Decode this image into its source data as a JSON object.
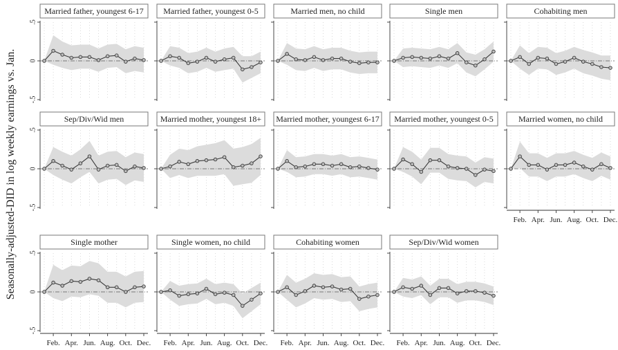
{
  "figure": {
    "ylabel": "Seasonally-adjusted-DID in log weekly earnings vs. Jan.",
    "x_tick_labels": [
      "Feb.",
      "Apr.",
      "Jun.",
      "Aug.",
      "Oct.",
      "Dec."
    ],
    "y_tick_labels": [
      "-.5",
      "0",
      ".5"
    ]
  },
  "colors": {
    "ci_band": "#dcdcdc",
    "line": "#3a3a3a",
    "marker_fill": "#bdbdbd",
    "zero_line": "#555555",
    "grid": "#cfcfcf",
    "header_border": "#777777"
  },
  "chart_data": {
    "type": "line",
    "layout": "small-multiples 3x5",
    "x": [
      1,
      2,
      3,
      4,
      5,
      6,
      7,
      8,
      9,
      10,
      11,
      12
    ],
    "x_tick_values": [
      2,
      4,
      6,
      8,
      10,
      12
    ],
    "ylim": [
      -0.5,
      0.5
    ],
    "y_tick_values": [
      -0.5,
      0,
      0.5
    ],
    "grid": true,
    "panels": [
      {
        "title": "Married father, youngest 6-17",
        "y": [
          0,
          0.13,
          0.08,
          0.04,
          0.05,
          0.05,
          0.01,
          0.06,
          0.07,
          -0.01,
          0.03,
          0.01
        ],
        "lo": [
          0,
          -0.05,
          -0.09,
          -0.12,
          -0.1,
          -0.1,
          -0.14,
          -0.09,
          -0.08,
          -0.16,
          -0.13,
          -0.15
        ],
        "hi": [
          0,
          0.33,
          0.25,
          0.2,
          0.21,
          0.21,
          0.16,
          0.21,
          0.22,
          0.15,
          0.19,
          0.17
        ]
      },
      {
        "title": "Married father, youngest 0-5",
        "y": [
          0,
          0.06,
          0.04,
          -0.03,
          -0.01,
          0.04,
          -0.01,
          0.02,
          0.04,
          -0.11,
          -0.08,
          -0.02
        ],
        "lo": [
          0,
          -0.06,
          -0.09,
          -0.16,
          -0.14,
          -0.09,
          -0.14,
          -0.12,
          -0.1,
          -0.28,
          -0.22,
          -0.16
        ],
        "hi": [
          0,
          0.19,
          0.17,
          0.1,
          0.12,
          0.17,
          0.12,
          0.16,
          0.18,
          0.06,
          0.06,
          0.12
        ]
      },
      {
        "title": "Married men, no child",
        "y": [
          0,
          0.09,
          0.02,
          0.01,
          0.05,
          0.01,
          0.03,
          0.03,
          -0.01,
          -0.03,
          -0.02,
          -0.02
        ],
        "lo": [
          0,
          -0.05,
          -0.12,
          -0.13,
          -0.09,
          -0.13,
          -0.11,
          -0.11,
          -0.15,
          -0.17,
          -0.16,
          -0.16
        ],
        "hi": [
          0,
          0.23,
          0.16,
          0.15,
          0.19,
          0.15,
          0.17,
          0.17,
          0.13,
          0.11,
          0.12,
          0.12
        ]
      },
      {
        "title": "Single men",
        "y": [
          0,
          0.04,
          0.05,
          0.04,
          0.03,
          0.06,
          0.03,
          0.1,
          -0.02,
          -0.06,
          0.02,
          0.12
        ],
        "lo": [
          0,
          -0.08,
          -0.07,
          -0.08,
          -0.09,
          -0.06,
          -0.09,
          -0.03,
          -0.15,
          -0.2,
          -0.11,
          -0.01
        ],
        "hi": [
          0,
          0.16,
          0.17,
          0.16,
          0.15,
          0.18,
          0.15,
          0.23,
          0.11,
          0.08,
          0.15,
          0.25
        ]
      },
      {
        "title": "Cohabiting men",
        "y": [
          0,
          0.05,
          -0.04,
          0.04,
          0.03,
          -0.04,
          -0.01,
          0.04,
          -0.01,
          -0.04,
          -0.08,
          -0.09
        ],
        "lo": [
          0,
          -0.1,
          -0.18,
          -0.1,
          -0.11,
          -0.18,
          -0.15,
          -0.1,
          -0.16,
          -0.19,
          -0.23,
          -0.25
        ],
        "hi": [
          0,
          0.2,
          0.1,
          0.18,
          0.17,
          0.1,
          0.13,
          0.18,
          0.14,
          0.11,
          0.07,
          0.07
        ]
      },
      {
        "title": "Sep/Div/Wid men",
        "y": [
          0,
          0.1,
          0.04,
          -0.01,
          0.07,
          0.16,
          -0.01,
          0.04,
          0.05,
          -0.03,
          0.03,
          0.01
        ],
        "lo": [
          0,
          -0.08,
          -0.14,
          -0.19,
          -0.11,
          -0.04,
          -0.19,
          -0.14,
          -0.13,
          -0.21,
          -0.15,
          -0.17
        ],
        "hi": [
          0,
          0.28,
          0.22,
          0.17,
          0.25,
          0.36,
          0.17,
          0.22,
          0.23,
          0.15,
          0.21,
          0.19
        ]
      },
      {
        "title": "Married mother, youngest 18+",
        "y": [
          0,
          0.03,
          0.09,
          0.06,
          0.1,
          0.11,
          0.12,
          0.15,
          0.02,
          0.04,
          0.07,
          0.16
        ],
        "lo": [
          0,
          -0.12,
          -0.08,
          -0.12,
          -0.09,
          -0.09,
          -0.09,
          -0.07,
          -0.22,
          -0.2,
          -0.18,
          -0.08
        ],
        "hi": [
          0,
          0.18,
          0.26,
          0.24,
          0.29,
          0.31,
          0.33,
          0.37,
          0.26,
          0.28,
          0.32,
          0.4
        ]
      },
      {
        "title": "Married mother, youngest 6-17",
        "y": [
          0,
          0.1,
          0.02,
          0.03,
          0.06,
          0.06,
          0.04,
          0.06,
          0.02,
          0.03,
          0.01,
          -0.01
        ],
        "lo": [
          0,
          -0.04,
          -0.11,
          -0.1,
          -0.07,
          -0.07,
          -0.09,
          -0.07,
          -0.11,
          -0.1,
          -0.12,
          -0.14
        ],
        "hi": [
          0,
          0.24,
          0.15,
          0.16,
          0.19,
          0.19,
          0.17,
          0.19,
          0.15,
          0.16,
          0.14,
          0.12
        ]
      },
      {
        "title": "Married mother, youngest 0-5",
        "y": [
          0,
          0.12,
          0.06,
          -0.04,
          0.11,
          0.11,
          0.03,
          0.01,
          0.0,
          -0.08,
          -0.01,
          -0.03
        ],
        "lo": [
          0,
          -0.04,
          -0.1,
          -0.2,
          -0.05,
          -0.05,
          -0.13,
          -0.15,
          -0.16,
          -0.24,
          -0.17,
          -0.19
        ],
        "hi": [
          0,
          0.28,
          0.22,
          0.12,
          0.27,
          0.27,
          0.19,
          0.17,
          0.16,
          0.08,
          0.15,
          0.13
        ]
      },
      {
        "title": "Married women, no child",
        "y": [
          0,
          0.16,
          0.05,
          0.05,
          -0.01,
          0.05,
          0.05,
          0.08,
          0.03,
          -0.01,
          0.06,
          0.01
        ],
        "lo": [
          0,
          0.01,
          -0.1,
          -0.1,
          -0.16,
          -0.1,
          -0.1,
          -0.07,
          -0.12,
          -0.16,
          -0.09,
          -0.14
        ],
        "hi": [
          0,
          0.35,
          0.2,
          0.2,
          0.14,
          0.2,
          0.2,
          0.23,
          0.18,
          0.14,
          0.21,
          0.16
        ]
      },
      {
        "title": "Single mother",
        "y": [
          0,
          0.12,
          0.08,
          0.14,
          0.13,
          0.17,
          0.15,
          0.06,
          0.06,
          0.0,
          0.06,
          0.07
        ],
        "lo": [
          0,
          -0.08,
          -0.12,
          -0.06,
          -0.07,
          -0.03,
          -0.05,
          -0.14,
          -0.14,
          -0.2,
          -0.14,
          -0.13
        ],
        "hi": [
          0,
          0.35,
          0.28,
          0.34,
          0.33,
          0.4,
          0.37,
          0.26,
          0.26,
          0.2,
          0.26,
          0.27
        ]
      },
      {
        "title": "Single women, no child",
        "y": [
          0,
          0.02,
          -0.05,
          -0.03,
          -0.02,
          0.04,
          -0.03,
          -0.01,
          -0.04,
          -0.18,
          -0.1,
          -0.02
        ],
        "lo": [
          0,
          -0.1,
          -0.18,
          -0.16,
          -0.15,
          -0.09,
          -0.16,
          -0.14,
          -0.18,
          -0.34,
          -0.25,
          -0.16
        ],
        "hi": [
          0,
          0.14,
          0.08,
          0.1,
          0.11,
          0.17,
          0.1,
          0.12,
          0.1,
          -0.02,
          0.05,
          0.12
        ]
      },
      {
        "title": "Cohabiting women",
        "y": [
          0,
          0.06,
          -0.04,
          0.01,
          0.08,
          0.06,
          0.07,
          0.03,
          0.04,
          -0.09,
          -0.06,
          -0.04
        ],
        "lo": [
          0,
          -0.1,
          -0.2,
          -0.15,
          -0.08,
          -0.1,
          -0.09,
          -0.13,
          -0.12,
          -0.25,
          -0.22,
          -0.2
        ],
        "hi": [
          0,
          0.22,
          0.12,
          0.17,
          0.24,
          0.22,
          0.23,
          0.19,
          0.2,
          0.07,
          0.1,
          0.12
        ]
      },
      {
        "title": "Sep/Div/Wid women",
        "y": [
          0,
          0.06,
          0.04,
          0.08,
          -0.04,
          0.05,
          0.05,
          -0.02,
          0.01,
          0.01,
          -0.01,
          -0.05
        ],
        "lo": [
          0,
          -0.06,
          -0.08,
          -0.04,
          -0.16,
          -0.07,
          -0.07,
          -0.14,
          -0.11,
          -0.11,
          -0.13,
          -0.17
        ],
        "hi": [
          0,
          0.18,
          0.16,
          0.2,
          0.08,
          0.17,
          0.17,
          0.1,
          0.13,
          0.13,
          0.11,
          0.07
        ]
      }
    ]
  }
}
